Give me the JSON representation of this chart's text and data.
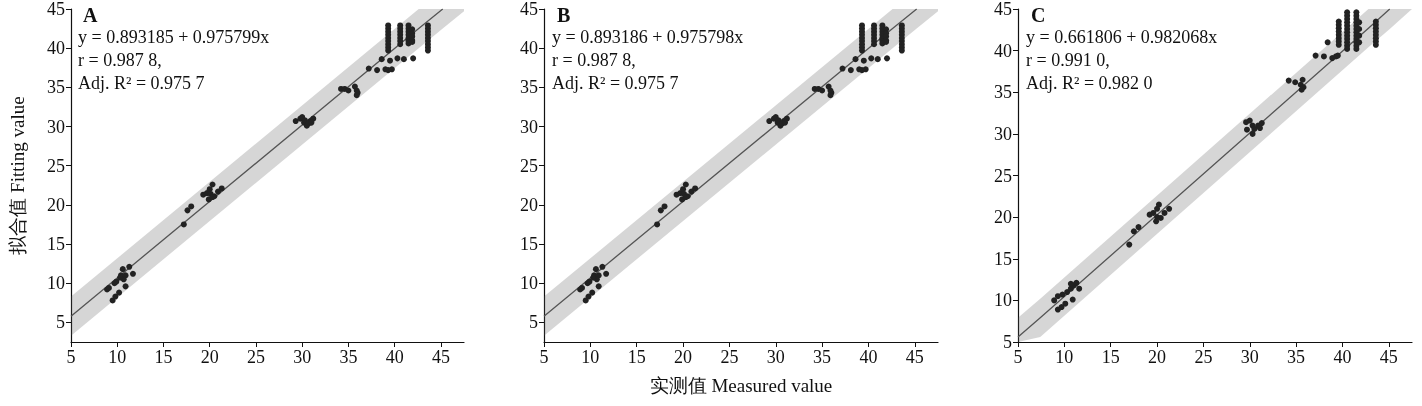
{
  "chart_data": [
    {
      "type": "scatter",
      "title": "A",
      "ylabel": "拟合值 Fitting value",
      "annotations": [
        "y = 0.893185 + 0.975799x",
        "r = 0.987 8,",
        "Adj. R² = 0.975 7"
      ],
      "xlim": [
        5,
        47.5
      ],
      "ylim": [
        2.5,
        45
      ],
      "xticks": [
        5,
        10,
        15,
        20,
        25,
        30,
        35,
        40,
        45
      ],
      "yticks": [
        5,
        10,
        15,
        20,
        25,
        30,
        35,
        40,
        45
      ],
      "grid": false,
      "series": [
        {
          "marker": "circle",
          "color": "#222222",
          "x": [
            8.9,
            9.1,
            9.5,
            9.8,
            10.2,
            9.7,
            9.9,
            10.4,
            10.6,
            10.9,
            10.7,
            10.9,
            11.3,
            11.7,
            10.3,
            17.2,
            17.6,
            18.0,
            19.3,
            19.7,
            20.0,
            20.3,
            20.1,
            20.5,
            19.9,
            20.3,
            20.9,
            21.3,
            29.3,
            29.8,
            30.2,
            30.5,
            30.9,
            31.2,
            30.0,
            30.3,
            30.7,
            31.0,
            34.2,
            34.6,
            35.0,
            35.7,
            35.9,
            36.0,
            35.9,
            37.2,
            38.1,
            38.6,
            39.0,
            39.3,
            39.7,
            39.5,
            39.3,
            39.3,
            39.3,
            39.3,
            39.3,
            39.3,
            39.3,
            39.3,
            39.3,
            40.6,
            40.6,
            40.6,
            40.6,
            40.6,
            40.6,
            40.6,
            40.3,
            41.0,
            41.5,
            41.5,
            41.5,
            41.5,
            41.5,
            41.5,
            41.5,
            41.5,
            41.9,
            41.9,
            41.9,
            41.9,
            41.9,
            42.0,
            43.6,
            43.6,
            43.6,
            43.6,
            43.6,
            43.6,
            43.6,
            43.6,
            43.6
          ],
          "values": [
            9.2,
            9.4,
            7.8,
            8.3,
            8.8,
            10.0,
            10.2,
            11.0,
            11.8,
            11.0,
            10.5,
            9.6,
            12.1,
            11.2,
            10.7,
            17.5,
            19.3,
            19.8,
            21.3,
            21.5,
            22.0,
            22.6,
            21.4,
            21.1,
            20.7,
            21.0,
            21.7,
            22.1,
            30.7,
            31.0,
            30.5,
            30.1,
            30.7,
            31.0,
            31.2,
            30.8,
            30.4,
            30.5,
            34.8,
            34.8,
            34.6,
            35.1,
            34.6,
            34.3,
            34.0,
            37.4,
            37.2,
            38.6,
            37.3,
            37.2,
            37.3,
            38.4,
            42.9,
            42.5,
            42.1,
            41.7,
            41.3,
            40.9,
            40.5,
            40.1,
            39.7,
            42.9,
            42.5,
            42.1,
            41.7,
            41.3,
            40.9,
            40.5,
            38.7,
            38.6,
            42.9,
            42.5,
            42.1,
            41.7,
            41.3,
            41.1,
            40.9,
            40.6,
            42.4,
            41.9,
            41.5,
            41.0,
            40.8,
            38.7,
            42.9,
            42.5,
            42.1,
            41.7,
            41.3,
            40.9,
            40.5,
            40.1,
            39.7
          ]
        },
        {
          "type": "line",
          "marker": "none",
          "color": "#555555",
          "x": [
            5,
            42.6,
            45.2,
            47.5
          ],
          "values": [
            5.8,
            42.5,
            45,
            null
          ],
          "lower": [
            3.3,
            40.0,
            42.5,
            44.7
          ],
          "upper": [
            8.3,
            45,
            45,
            45
          ]
        }
      ]
    },
    {
      "type": "scatter",
      "title": "B",
      "xlabel": "实测值 Measured value",
      "annotations": [
        "y = 0.893186 + 0.975798x",
        "r = 0.987 8,",
        "Adj. R² = 0.975 7"
      ],
      "xlim": [
        5,
        47.5
      ],
      "ylim": [
        2.5,
        45
      ],
      "xticks": [
        5,
        10,
        15,
        20,
        25,
        30,
        35,
        40,
        45
      ],
      "yticks": [
        5,
        10,
        15,
        20,
        25,
        30,
        35,
        40,
        45
      ],
      "grid": false,
      "series": [
        {
          "marker": "circle",
          "color": "#222222",
          "x": [
            8.9,
            9.1,
            9.5,
            9.8,
            10.2,
            9.7,
            9.9,
            10.4,
            10.6,
            10.9,
            10.7,
            10.9,
            11.3,
            11.7,
            10.3,
            17.2,
            17.6,
            18.0,
            19.3,
            19.7,
            20.0,
            20.3,
            20.1,
            20.5,
            19.9,
            20.3,
            20.9,
            21.3,
            29.3,
            29.8,
            30.2,
            30.5,
            30.9,
            31.2,
            30.0,
            30.3,
            30.7,
            31.0,
            34.2,
            34.6,
            35.0,
            35.7,
            35.9,
            36.0,
            35.9,
            37.2,
            38.1,
            38.6,
            39.0,
            39.3,
            39.7,
            39.5,
            39.3,
            39.3,
            39.3,
            39.3,
            39.3,
            39.3,
            39.3,
            39.3,
            39.3,
            40.6,
            40.6,
            40.6,
            40.6,
            40.6,
            40.6,
            40.6,
            40.3,
            41.0,
            41.5,
            41.5,
            41.5,
            41.5,
            41.5,
            41.5,
            41.5,
            41.5,
            41.9,
            41.9,
            41.9,
            41.9,
            41.9,
            42.0,
            43.6,
            43.6,
            43.6,
            43.6,
            43.6,
            43.6,
            43.6,
            43.6,
            43.6
          ],
          "values": [
            9.2,
            9.4,
            7.8,
            8.3,
            8.8,
            10.0,
            10.2,
            11.0,
            11.8,
            11.0,
            10.5,
            9.6,
            12.1,
            11.2,
            10.7,
            17.5,
            19.3,
            19.8,
            21.3,
            21.5,
            22.0,
            22.6,
            21.4,
            21.1,
            20.7,
            21.0,
            21.7,
            22.1,
            30.7,
            31.0,
            30.5,
            30.1,
            30.7,
            31.0,
            31.2,
            30.8,
            30.4,
            30.5,
            34.8,
            34.8,
            34.6,
            35.1,
            34.6,
            34.3,
            34.0,
            37.4,
            37.2,
            38.6,
            37.3,
            37.2,
            37.3,
            38.4,
            42.9,
            42.5,
            42.1,
            41.7,
            41.3,
            40.9,
            40.5,
            40.1,
            39.7,
            42.9,
            42.5,
            42.1,
            41.7,
            41.3,
            40.9,
            40.5,
            38.7,
            38.6,
            42.9,
            42.5,
            42.1,
            41.7,
            41.3,
            41.1,
            40.9,
            40.6,
            42.4,
            41.9,
            41.5,
            41.0,
            40.8,
            38.7,
            42.9,
            42.5,
            42.1,
            41.7,
            41.3,
            40.9,
            40.5,
            40.1,
            39.7
          ]
        },
        {
          "type": "line",
          "marker": "none",
          "color": "#555555",
          "x": [
            5,
            42.6,
            45.2,
            47.5
          ],
          "values": [
            5.8,
            42.5,
            45,
            null
          ],
          "lower": [
            3.3,
            40.0,
            42.5,
            44.7
          ],
          "upper": [
            8.3,
            45,
            45,
            45
          ]
        }
      ]
    },
    {
      "type": "scatter",
      "title": "C",
      "annotations": [
        "y = 0.661806 + 0.982068x",
        "r = 0.991 0,",
        "Adj. R² = 0.982 0"
      ],
      "xlim": [
        5,
        47.5
      ],
      "ylim": [
        5,
        45
      ],
      "xticks": [
        5,
        10,
        15,
        20,
        25,
        30,
        35,
        40,
        45
      ],
      "yticks": [
        5,
        10,
        15,
        20,
        25,
        30,
        35,
        40,
        45
      ],
      "grid": false,
      "series": [
        {
          "marker": "circle",
          "color": "#222222",
          "x": [
            9.3,
            9.7,
            10.1,
            10.9,
            8.9,
            9.3,
            9.8,
            10.3,
            10.7,
            11.0,
            11.3,
            11.6,
            10.7,
            17.0,
            17.5,
            18.0,
            19.2,
            19.6,
            20.0,
            20.2,
            20.0,
            19.9,
            20.4,
            20.8,
            21.3,
            29.6,
            30.0,
            30.3,
            30.5,
            30.9,
            31.3,
            29.7,
            30.3,
            31.1,
            34.2,
            34.9,
            35.5,
            35.7,
            35.8,
            35.6,
            37.1,
            38.0,
            38.4,
            38.9,
            39.3,
            39.5,
            39.6,
            39.6,
            39.6,
            39.6,
            39.6,
            39.6,
            39.6,
            39.6,
            40.5,
            40.5,
            40.5,
            40.5,
            40.5,
            40.5,
            40.5,
            40.5,
            40.5,
            40.5,
            40.5,
            40.5,
            41.5,
            41.5,
            41.5,
            41.5,
            41.5,
            41.5,
            41.5,
            41.5,
            41.5,
            41.5,
            41.5,
            41.5,
            41.8,
            41.8,
            41.8,
            41.8,
            43.6,
            43.6,
            43.6,
            43.6,
            43.6,
            43.6,
            43.6,
            43.6
          ],
          "values": [
            8.9,
            9.2,
            9.6,
            10.1,
            10.0,
            10.5,
            10.7,
            11.0,
            11.4,
            11.8,
            12.1,
            11.4,
            12.0,
            16.7,
            18.3,
            18.8,
            20.3,
            20.5,
            21.0,
            21.5,
            20.0,
            19.5,
            19.9,
            20.5,
            21.0,
            31.4,
            31.6,
            31.0,
            30.6,
            31.0,
            31.3,
            30.5,
            30.0,
            30.7,
            36.4,
            36.2,
            35.9,
            36.5,
            35.6,
            35.3,
            39.4,
            39.3,
            41.0,
            39.1,
            39.3,
            39.4,
            43.5,
            43.1,
            42.7,
            42.3,
            41.9,
            41.5,
            41.1,
            40.7,
            44.6,
            44.2,
            43.8,
            43.4,
            43.0,
            42.6,
            42.2,
            41.8,
            41.4,
            41.0,
            40.6,
            40.2,
            44.6,
            44.2,
            43.8,
            43.4,
            43.0,
            42.6,
            42.2,
            41.8,
            41.4,
            41.0,
            40.6,
            40.2,
            43.4,
            42.6,
            41.8,
            41.0,
            43.5,
            43.1,
            42.7,
            42.3,
            41.9,
            41.5,
            41.1,
            40.7
          ]
        },
        {
          "type": "line",
          "marker": "none",
          "color": "#555555",
          "x": [
            5,
            7.4,
            42.8,
            45.1,
            47.5
          ],
          "values": [
            5.6,
            7.9,
            42.7,
            45,
            null
          ],
          "lower": [
            5,
            5.6,
            40.4,
            42.6,
            45
          ],
          "upper": [
            7.9,
            10.2,
            45,
            45,
            45
          ]
        }
      ]
    }
  ]
}
